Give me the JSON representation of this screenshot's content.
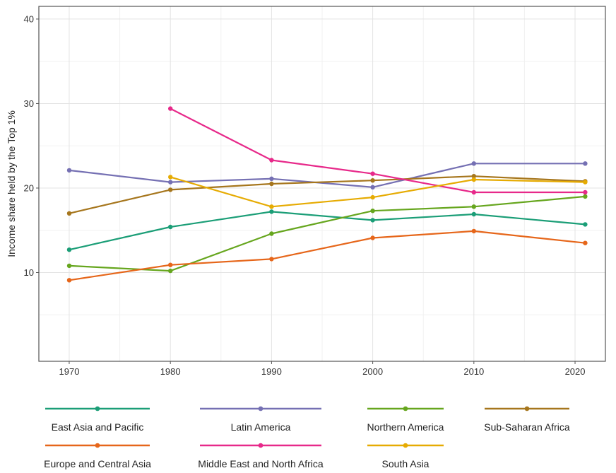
{
  "chart_data": {
    "type": "line",
    "ylabel": "Income share held by the Top 1%",
    "xlabel": "",
    "xlim": [
      1967,
      2023
    ],
    "ylim": [
      -0.5,
      41.5
    ],
    "x_ticks": [
      1970,
      1980,
      1990,
      2000,
      2010,
      2020
    ],
    "y_ticks": [
      10,
      20,
      30,
      40
    ],
    "grid": true,
    "legend_position": "bottom",
    "series": [
      {
        "name": "East Asia and Pacific",
        "color": "#1b9e77",
        "points": [
          [
            1970,
            12.7
          ],
          [
            1980,
            15.4
          ],
          [
            1990,
            17.2
          ],
          [
            2000,
            16.2
          ],
          [
            2010,
            16.9
          ],
          [
            2021,
            15.7
          ]
        ]
      },
      {
        "name": "Latin America",
        "color": "#7570b3",
        "points": [
          [
            1970,
            22.1
          ],
          [
            1980,
            20.7
          ],
          [
            1990,
            21.1
          ],
          [
            2000,
            20.1
          ],
          [
            2010,
            22.9
          ],
          [
            2021,
            22.9
          ]
        ]
      },
      {
        "name": "Northern America",
        "color": "#66a61e",
        "points": [
          [
            1970,
            10.8
          ],
          [
            1980,
            10.2
          ],
          [
            1990,
            14.6
          ],
          [
            2000,
            17.3
          ],
          [
            2010,
            17.8
          ],
          [
            2021,
            19.0
          ]
        ]
      },
      {
        "name": "Sub-Saharan Africa",
        "color": "#a6761d",
        "points": [
          [
            1970,
            17.0
          ],
          [
            1980,
            19.8
          ],
          [
            1990,
            20.5
          ],
          [
            2000,
            20.9
          ],
          [
            2010,
            21.4
          ],
          [
            2021,
            20.8
          ]
        ]
      },
      {
        "name": "Europe and Central Asia",
        "color": "#e6661a",
        "points": [
          [
            1970,
            9.1
          ],
          [
            1980,
            10.9
          ],
          [
            1990,
            11.6
          ],
          [
            2000,
            14.1
          ],
          [
            2010,
            14.9
          ],
          [
            2021,
            13.5
          ]
        ]
      },
      {
        "name": "Middle East and North Africa",
        "color": "#e7298a",
        "points": [
          [
            1980,
            29.4
          ],
          [
            1990,
            23.3
          ],
          [
            2000,
            21.7
          ],
          [
            2010,
            19.5
          ],
          [
            2021,
            19.5
          ]
        ]
      },
      {
        "name": "South Asia",
        "color": "#e6ab02",
        "points": [
          [
            1980,
            21.3
          ],
          [
            1990,
            17.8
          ],
          [
            2000,
            18.9
          ],
          [
            2010,
            21.0
          ],
          [
            2021,
            20.7
          ]
        ]
      }
    ]
  }
}
